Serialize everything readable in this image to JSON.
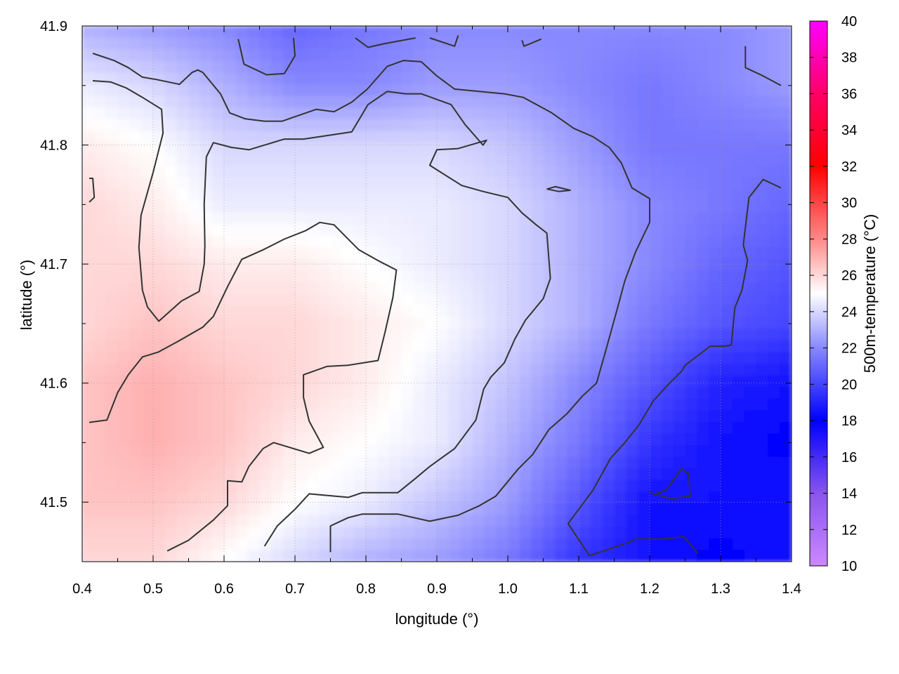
{
  "chart_data": {
    "type": "heatmap",
    "title": "",
    "xlabel": "longitude (°)",
    "ylabel": "latitude (°)",
    "colorbar_label": "500m-temperature (°C)",
    "xlim": [
      0.4,
      1.4
    ],
    "ylim": [
      41.45,
      41.9
    ],
    "x_ticks": [
      "0.4",
      "0.5",
      "0.6",
      "0.7",
      "0.8",
      "0.9",
      "1.0",
      "1.1",
      "1.2",
      "1.3",
      "1.4"
    ],
    "y_ticks": [
      "41.5",
      "41.6",
      "41.7",
      "41.8",
      "41.9"
    ],
    "colorbar_range": [
      10,
      40
    ],
    "colorbar_ticks": [
      "10",
      "12",
      "14",
      "16",
      "18",
      "20",
      "22",
      "24",
      "26",
      "28",
      "30",
      "32",
      "34",
      "36",
      "38",
      "40"
    ],
    "colormap": [
      {
        "value": 10,
        "color": "#cc88ff"
      },
      {
        "value": 14,
        "color": "#8855ee"
      },
      {
        "value": 18,
        "color": "#0000ff"
      },
      {
        "value": 22,
        "color": "#8888ff"
      },
      {
        "value": 25,
        "color": "#ffffff"
      },
      {
        "value": 28,
        "color": "#ff8888"
      },
      {
        "value": 32,
        "color": "#ff0000"
      },
      {
        "value": 36,
        "color": "#ff0066"
      },
      {
        "value": 40,
        "color": "#ff00ff"
      }
    ],
    "grid": true,
    "temperature_field": {
      "x": [
        0.4,
        0.5,
        0.6,
        0.7,
        0.8,
        0.9,
        1.0,
        1.1,
        1.2,
        1.3,
        1.4
      ],
      "y": [
        41.9,
        41.85,
        41.8,
        41.75,
        41.7,
        41.65,
        41.6,
        41.55,
        41.5,
        41.45
      ],
      "values": [
        [
          23.0,
          22.5,
          22.0,
          21.0,
          21.5,
          22.0,
          22.0,
          22.0,
          22.0,
          22.0,
          22.5
        ],
        [
          24.5,
          24.0,
          23.0,
          22.0,
          22.0,
          22.5,
          22.5,
          22.0,
          21.5,
          22.0,
          22.5
        ],
        [
          25.5,
          25.0,
          24.0,
          24.0,
          24.0,
          24.0,
          23.5,
          22.5,
          21.5,
          21.5,
          21.5
        ],
        [
          26.0,
          25.5,
          24.5,
          24.5,
          24.5,
          24.5,
          24.0,
          23.0,
          22.0,
          21.5,
          21.0
        ],
        [
          26.0,
          26.0,
          25.5,
          25.5,
          25.0,
          24.5,
          24.0,
          23.0,
          22.0,
          21.0,
          20.5
        ],
        [
          26.0,
          26.5,
          26.0,
          26.0,
          25.5,
          25.0,
          24.0,
          23.0,
          21.5,
          20.5,
          20.0
        ],
        [
          26.5,
          27.0,
          26.5,
          26.0,
          25.5,
          24.5,
          23.5,
          22.0,
          20.5,
          19.0,
          18.5
        ],
        [
          26.5,
          27.0,
          26.5,
          25.5,
          25.0,
          24.5,
          23.0,
          21.5,
          19.5,
          18.5,
          18.0
        ],
        [
          26.5,
          26.5,
          26.0,
          25.0,
          24.5,
          23.5,
          22.5,
          20.5,
          18.5,
          18.5,
          18.5
        ],
        [
          26.0,
          26.0,
          25.0,
          24.0,
          23.0,
          22.5,
          21.5,
          19.5,
          18.5,
          18.0,
          18.5
        ]
      ]
    },
    "contours": [
      [
        [
          0.415,
          41.877
        ],
        [
          0.445,
          41.871
        ],
        [
          0.465,
          41.865
        ],
        [
          0.485,
          41.857
        ],
        [
          0.505,
          41.855
        ],
        [
          0.537,
          41.851
        ],
        [
          0.555,
          41.861
        ],
        [
          0.563,
          41.863
        ],
        [
          0.57,
          41.861
        ],
        [
          0.595,
          41.843
        ],
        [
          0.608,
          41.827
        ],
        [
          0.63,
          41.822
        ],
        [
          0.657,
          41.82
        ],
        [
          0.682,
          41.82
        ],
        [
          0.73,
          41.83
        ],
        [
          0.755,
          41.828
        ],
        [
          0.78,
          41.836
        ],
        [
          0.802,
          41.847
        ],
        [
          0.83,
          41.866
        ],
        [
          0.853,
          41.871
        ],
        [
          0.878,
          41.87
        ],
        [
          0.9,
          41.858
        ],
        [
          0.925,
          41.847
        ],
        [
          0.995,
          41.843
        ],
        [
          1.022,
          41.84
        ],
        [
          1.062,
          41.827
        ],
        [
          1.093,
          41.814
        ],
        [
          1.12,
          41.807
        ],
        [
          1.143,
          41.798
        ],
        [
          1.16,
          41.785
        ],
        [
          1.175,
          41.764
        ],
        [
          1.2,
          41.755
        ],
        [
          1.2,
          41.735
        ],
        [
          1.18,
          41.71
        ],
        [
          1.165,
          41.686
        ],
        [
          1.155,
          41.664
        ],
        [
          1.137,
          41.625
        ],
        [
          1.125,
          41.6
        ],
        [
          1.105,
          41.589
        ],
        [
          1.083,
          41.574
        ],
        [
          1.058,
          41.561
        ],
        [
          1.035,
          41.54
        ],
        [
          1.015,
          41.528
        ],
        [
          0.983,
          41.505
        ],
        [
          0.96,
          41.497
        ],
        [
          0.93,
          41.489
        ],
        [
          0.89,
          41.484
        ],
        [
          0.845,
          41.49
        ],
        [
          0.795,
          41.49
        ],
        [
          0.775,
          41.487
        ],
        [
          0.75,
          41.48
        ],
        [
          0.75,
          41.458
        ]
      ],
      [
        [
          0.415,
          41.854
        ],
        [
          0.44,
          41.853
        ],
        [
          0.462,
          41.848
        ],
        [
          0.485,
          41.84
        ],
        [
          0.512,
          41.83
        ],
        [
          0.514,
          41.81
        ],
        [
          0.5,
          41.777
        ],
        [
          0.483,
          41.741
        ],
        [
          0.48,
          41.714
        ],
        [
          0.485,
          41.678
        ],
        [
          0.492,
          41.664
        ],
        [
          0.508,
          41.652
        ],
        [
          0.54,
          41.669
        ],
        [
          0.565,
          41.677
        ],
        [
          0.572,
          41.7
        ],
        [
          0.573,
          41.715
        ],
        [
          0.572,
          41.75
        ],
        [
          0.575,
          41.79
        ],
        [
          0.585,
          41.802
        ],
        [
          0.61,
          41.798
        ],
        [
          0.635,
          41.796
        ],
        [
          0.685,
          41.805
        ],
        [
          0.712,
          41.805
        ],
        [
          0.78,
          41.811
        ],
        [
          0.803,
          41.834
        ],
        [
          0.83,
          41.845
        ],
        [
          0.856,
          41.843
        ],
        [
          0.878,
          41.843
        ],
        [
          0.92,
          41.834
        ],
        [
          0.94,
          41.817
        ],
        [
          0.965,
          41.8
        ],
        [
          0.97,
          41.804
        ],
        [
          0.93,
          41.797
        ],
        [
          0.9,
          41.796
        ],
        [
          0.89,
          41.783
        ],
        [
          0.935,
          41.766
        ],
        [
          0.965,
          41.761
        ],
        [
          1.0,
          41.756
        ],
        [
          1.02,
          41.743
        ],
        [
          1.04,
          41.733
        ],
        [
          1.055,
          41.726
        ],
        [
          1.06,
          41.688
        ],
        [
          1.05,
          41.671
        ],
        [
          1.025,
          41.653
        ],
        [
          1.01,
          41.637
        ],
        [
          0.995,
          41.617
        ],
        [
          0.976,
          41.605
        ],
        [
          0.966,
          41.595
        ],
        [
          0.955,
          41.569
        ],
        [
          0.925,
          41.545
        ],
        [
          0.89,
          41.53
        ],
        [
          0.87,
          41.52
        ],
        [
          0.845,
          41.508
        ],
        [
          0.795,
          41.508
        ],
        [
          0.775,
          41.504
        ],
        [
          0.72,
          41.507
        ],
        [
          0.7,
          41.494
        ],
        [
          0.675,
          41.48
        ],
        [
          0.657,
          41.463
        ]
      ],
      [
        [
          0.41,
          41.567
        ],
        [
          0.435,
          41.569
        ],
        [
          0.45,
          41.592
        ],
        [
          0.465,
          41.607
        ],
        [
          0.485,
          41.622
        ],
        [
          0.507,
          41.626
        ],
        [
          0.535,
          41.635
        ],
        [
          0.57,
          41.647
        ],
        [
          0.585,
          41.656
        ],
        [
          0.605,
          41.681
        ],
        [
          0.625,
          41.704
        ],
        [
          0.655,
          41.712
        ],
        [
          0.685,
          41.721
        ],
        [
          0.715,
          41.728
        ],
        [
          0.735,
          41.735
        ],
        [
          0.755,
          41.733
        ],
        [
          0.79,
          41.712
        ],
        [
          0.82,
          41.702
        ],
        [
          0.843,
          41.695
        ],
        [
          0.838,
          41.672
        ],
        [
          0.827,
          41.643
        ],
        [
          0.817,
          41.619
        ],
        [
          0.775,
          41.615
        ],
        [
          0.745,
          41.614
        ],
        [
          0.712,
          41.607
        ],
        [
          0.712,
          41.588
        ],
        [
          0.72,
          41.568
        ],
        [
          0.74,
          41.546
        ],
        [
          0.72,
          41.541
        ],
        [
          0.67,
          41.55
        ],
        [
          0.655,
          41.545
        ],
        [
          0.635,
          41.53
        ],
        [
          0.625,
          41.517
        ],
        [
          0.605,
          41.518
        ],
        [
          0.605,
          41.497
        ],
        [
          0.585,
          41.485
        ],
        [
          0.55,
          41.468
        ],
        [
          0.52,
          41.459
        ]
      ],
      [
        [
          0.62,
          41.889
        ],
        [
          0.628,
          41.868
        ],
        [
          0.66,
          41.859
        ],
        [
          0.685,
          41.86
        ],
        [
          0.7,
          41.875
        ],
        [
          0.698,
          41.89
        ]
      ],
      [
        [
          0.785,
          41.89
        ],
        [
          0.803,
          41.882
        ],
        [
          0.825,
          41.885
        ],
        [
          0.87,
          41.89
        ]
      ],
      [
        [
          0.89,
          41.89
        ],
        [
          0.925,
          41.883
        ],
        [
          0.93,
          41.892
        ]
      ],
      [
        [
          1.02,
          41.888
        ],
        [
          1.023,
          41.883
        ],
        [
          1.047,
          41.889
        ]
      ],
      [
        [
          1.335,
          41.883
        ],
        [
          1.335,
          41.865
        ],
        [
          1.36,
          41.858
        ],
        [
          1.385,
          41.85
        ]
      ],
      [
        [
          1.385,
          41.764
        ],
        [
          1.36,
          41.771
        ],
        [
          1.34,
          41.756
        ],
        [
          1.332,
          41.716
        ],
        [
          1.338,
          41.703
        ],
        [
          1.33,
          41.678
        ],
        [
          1.32,
          41.663
        ],
        [
          1.315,
          41.632
        ],
        [
          1.305,
          41.631
        ],
        [
          1.285,
          41.631
        ],
        [
          1.27,
          41.624
        ],
        [
          1.25,
          41.615
        ],
        [
          1.245,
          41.61
        ],
        [
          1.228,
          41.6
        ],
        [
          1.205,
          41.585
        ],
        [
          1.185,
          41.565
        ],
        [
          1.165,
          41.55
        ],
        [
          1.145,
          41.537
        ],
        [
          1.12,
          41.51
        ],
        [
          1.085,
          41.482
        ],
        [
          1.115,
          41.455
        ]
      ],
      [
        [
          1.115,
          41.455
        ],
        [
          1.14,
          41.46
        ],
        [
          1.165,
          41.465
        ],
        [
          1.18,
          41.469
        ],
        [
          1.22,
          41.469
        ],
        [
          1.248,
          41.471
        ],
        [
          1.268,
          41.457
        ]
      ],
      [
        [
          1.208,
          41.507
        ],
        [
          1.223,
          41.51
        ],
        [
          1.245,
          41.528
        ],
        [
          1.255,
          41.524
        ],
        [
          1.257,
          41.505
        ],
        [
          1.23,
          41.503
        ],
        [
          1.2,
          41.508
        ]
      ],
      [
        [
          1.055,
          41.763
        ],
        [
          1.067,
          41.765
        ],
        [
          1.088,
          41.762
        ],
        [
          1.072,
          41.761
        ],
        [
          1.055,
          41.763
        ]
      ],
      [
        [
          0.41,
          41.772
        ],
        [
          0.415,
          41.772
        ],
        [
          0.417,
          41.756
        ],
        [
          0.41,
          41.752
        ]
      ]
    ]
  }
}
